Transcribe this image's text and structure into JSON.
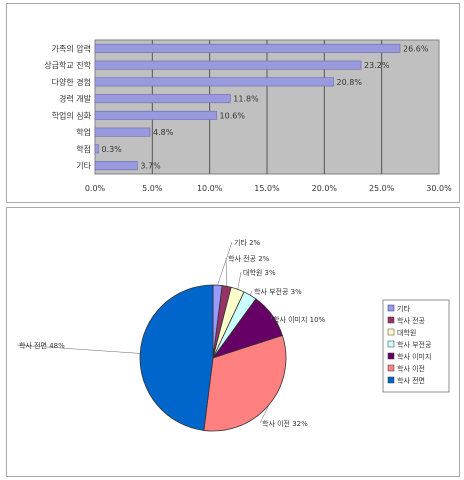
{
  "chart_data": [
    {
      "type": "bar",
      "orientation": "horizontal",
      "title": "",
      "categories": [
        "가족의 압력",
        "상급학교 진학",
        "다양한 경험",
        "경력 개발",
        "학업의 심화",
        "학업",
        "학점",
        "기타"
      ],
      "values": [
        26.6,
        23.2,
        20.8,
        11.8,
        10.6,
        4.8,
        0.3,
        3.7
      ],
      "data_labels": [
        "26.6%",
        "23.2%",
        "20.8%",
        "11.8%",
        "10.6%",
        "4.8%",
        "0.3%",
        "3.7%"
      ],
      "xlim": [
        0,
        30
      ],
      "ticks": [
        "0.0%",
        "5.0%",
        "10.0%",
        "15.0%",
        "20.0%",
        "25.0%",
        "30.0%"
      ],
      "grid": true,
      "colors": {
        "bar": "#9999dd",
        "bar_edge": "#6a6ab0",
        "plot_bg": "#c0c0c0",
        "grid": "#555555"
      }
    },
    {
      "type": "pie",
      "title": "",
      "legend_placement": "right",
      "slices": [
        {
          "label": "기타",
          "value": 2,
          "data_label": "2%",
          "color": "#9999ff"
        },
        {
          "label": "학사 전공",
          "value": 2,
          "data_label": "2%",
          "color": "#993366"
        },
        {
          "label": "대학원",
          "value": 3,
          "data_label": "3%",
          "color": "#ffffcc"
        },
        {
          "label": "학사 부전공",
          "value": 3,
          "data_label": "3%",
          "color": "#ccffff"
        },
        {
          "label": "학사 이미지",
          "value": 10,
          "data_label": "10%",
          "color": "#660066"
        },
        {
          "label": "학사 이전",
          "value": 32,
          "data_label": "32%",
          "color": "#ff8080"
        },
        {
          "label": "학사 전면",
          "value": 48,
          "data_label": "48%",
          "color": "#0066cc"
        }
      ]
    }
  ]
}
